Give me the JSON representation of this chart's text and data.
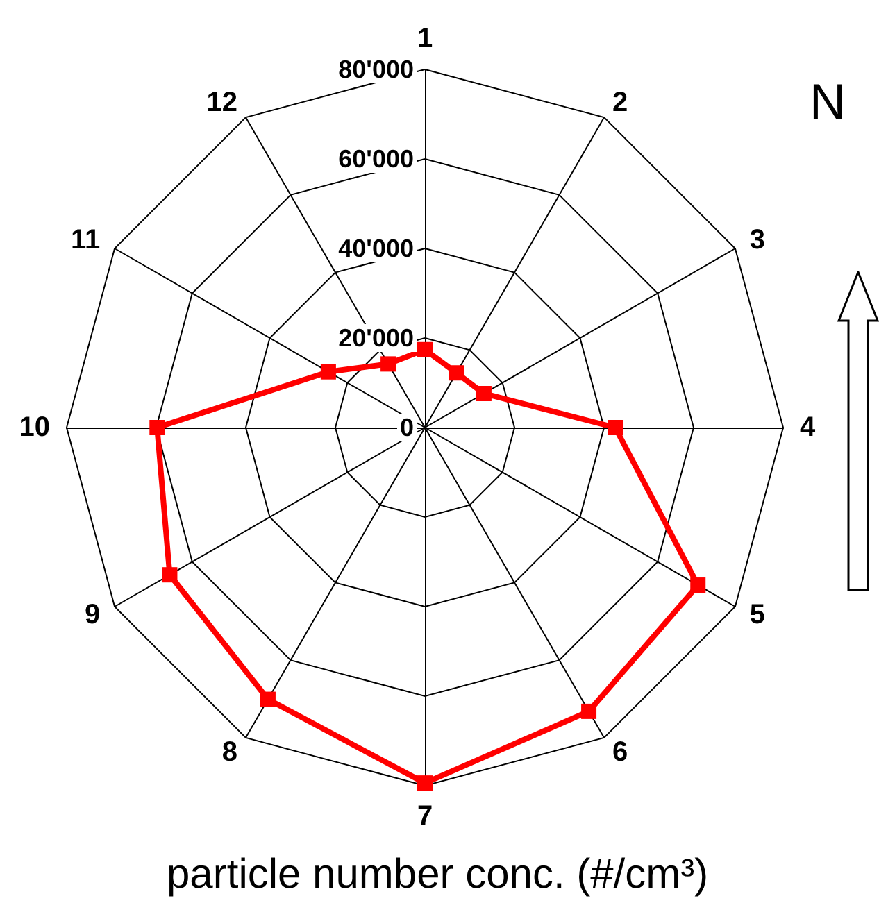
{
  "chart_data": {
    "type": "radar",
    "categories": [
      "1",
      "2",
      "3",
      "4",
      "5",
      "6",
      "7",
      "8",
      "9",
      "10",
      "11",
      "12"
    ],
    "series": [
      {
        "color": "#ff0000",
        "values": [
          17400,
          14100,
          15200,
          42500,
          70400,
          73200,
          79400,
          70100,
          65800,
          59800,
          24900,
          16400
        ]
      }
    ],
    "ylim": [
      0,
      80000
    ],
    "yticks": [
      0,
      {
        "value": 20000,
        "label": "20'000"
      },
      {
        "value": 40000,
        "label": "40'000"
      },
      {
        "value": 60000,
        "label": "60'000"
      },
      {
        "value": 80000,
        "label": "80'000"
      }
    ],
    "marker": "square",
    "line_style": "solid",
    "annotations": [
      "N",
      "particle number conc. (#/cm³)"
    ]
  }
}
